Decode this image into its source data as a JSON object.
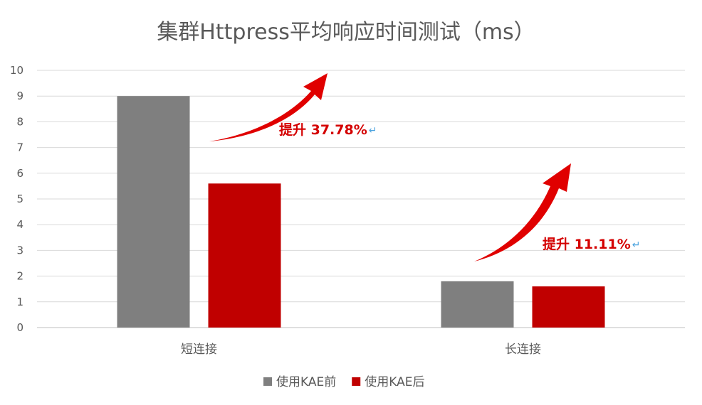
{
  "chart_data": {
    "type": "bar",
    "title": "集群Httpress平均响应时间测试（ms）",
    "categories": [
      "短连接",
      "长连接"
    ],
    "series": [
      {
        "name": "使用KAE前",
        "values": [
          9,
          1.8
        ],
        "color": "#7f7f7f"
      },
      {
        "name": "使用KAE后",
        "values": [
          5.6,
          1.6
        ],
        "color": "#c00000"
      }
    ],
    "ylim": [
      0,
      10
    ],
    "yticks": [
      0,
      1,
      2,
      3,
      4,
      5,
      6,
      7,
      8,
      9,
      10
    ],
    "grid": true,
    "legend_position": "bottom",
    "annotations": [
      {
        "text": "提升 37.78%",
        "category": "短连接",
        "color": "#e00000",
        "mark": "↵"
      },
      {
        "text": "提升 11.11%",
        "category": "长连接",
        "color": "#e00000",
        "mark": "↵"
      }
    ]
  }
}
